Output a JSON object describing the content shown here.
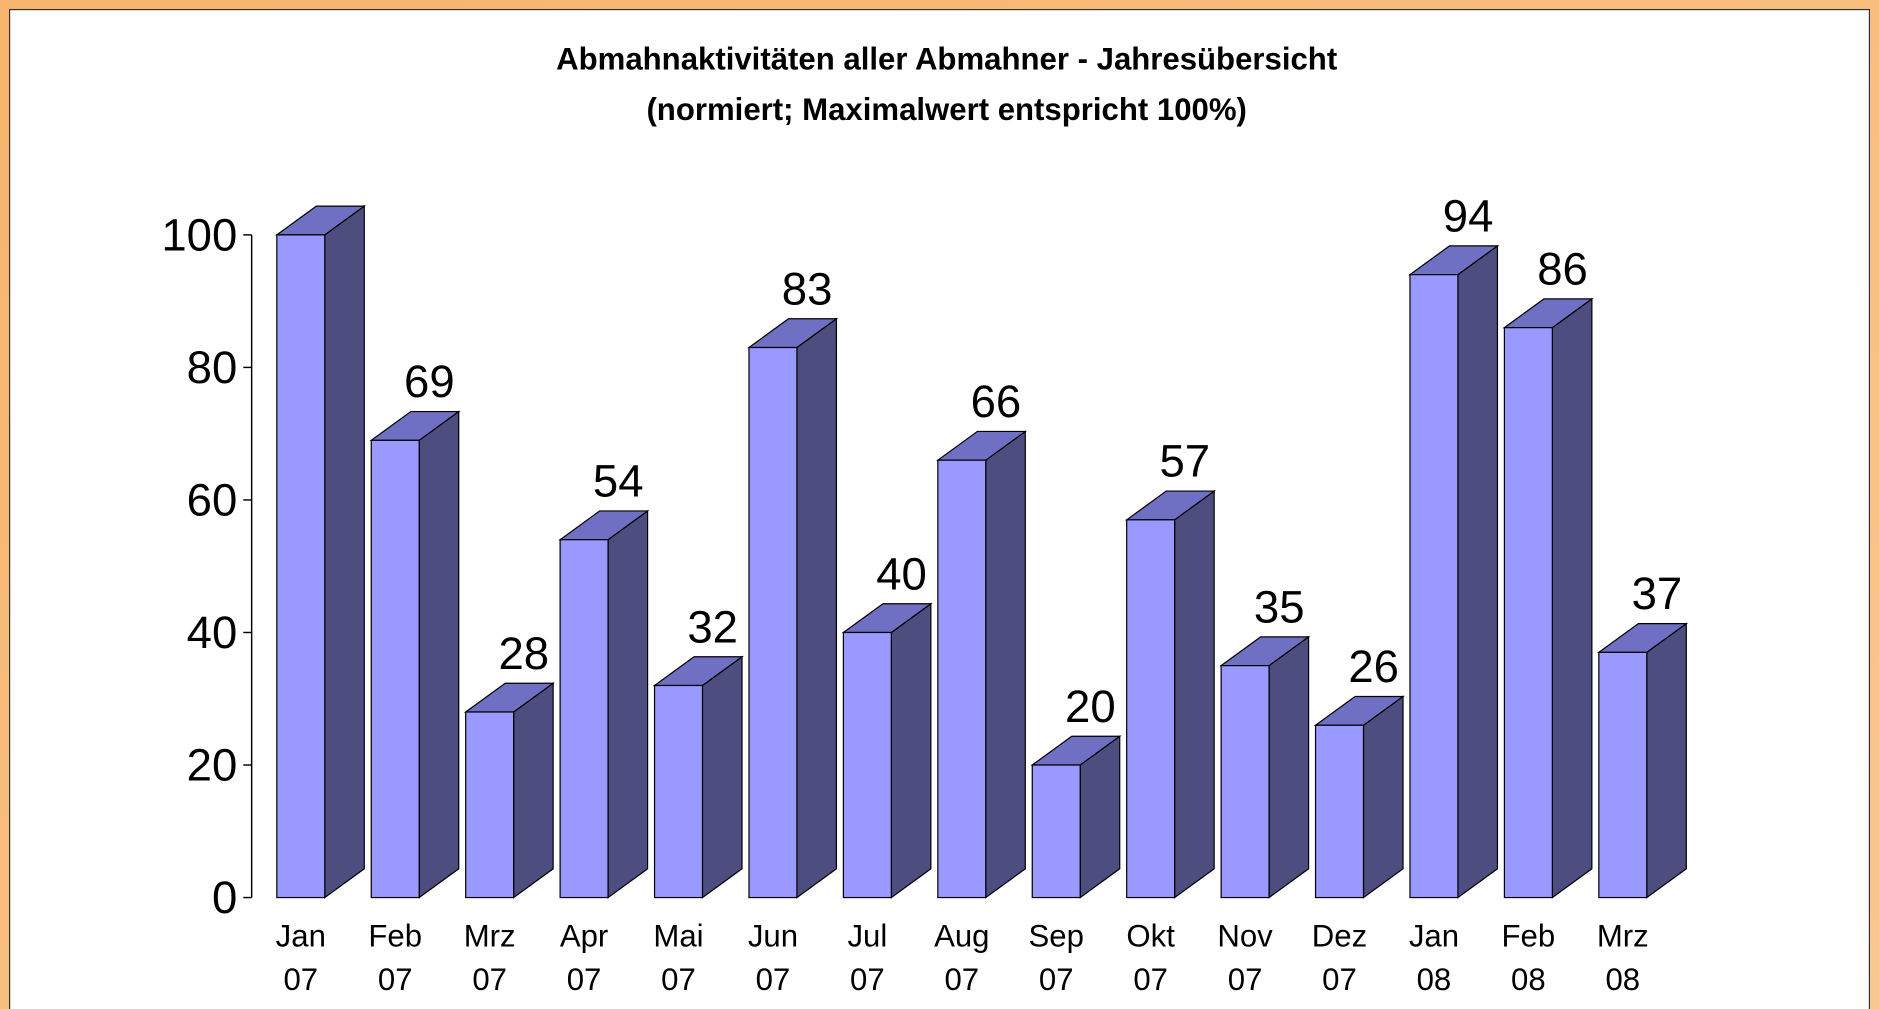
{
  "chart_data": {
    "type": "bar3d",
    "title": "Abmahnaktivitäten aller Abmahner - Jahresübersicht",
    "subtitle": "(normiert; Maximalwert entspricht 100%)",
    "categories": [
      "Jan 07",
      "Feb 07",
      "Mrz 07",
      "Apr 07",
      "Mai 07",
      "Jun 07",
      "Jul 07",
      "Aug 07",
      "Sep 07",
      "Okt 07",
      "Nov 07",
      "Dez 07",
      "Jan 08",
      "Feb 08",
      "Mrz 08"
    ],
    "values": [
      100,
      69,
      28,
      54,
      32,
      83,
      40,
      66,
      20,
      57,
      35,
      26,
      94,
      86,
      37
    ],
    "value_labels": [
      null,
      "69",
      "28",
      "54",
      "32",
      "83",
      "40",
      "66",
      "20",
      "57",
      "35",
      "26",
      "94",
      "86",
      "37"
    ],
    "color": "#9999ff",
    "ylim": [
      0,
      100
    ],
    "yticks": [
      0,
      20,
      40,
      60,
      80,
      100
    ],
    "grid": false
  }
}
